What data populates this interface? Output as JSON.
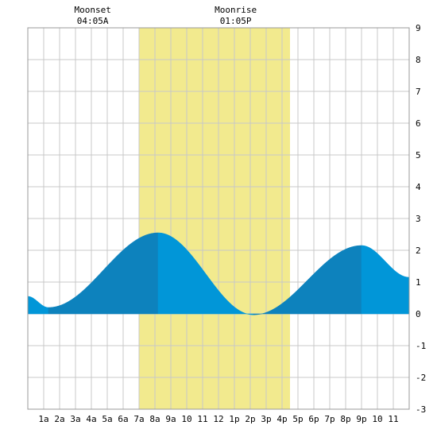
{
  "chart_data": {
    "type": "area",
    "title": "",
    "xlabel": "",
    "ylabel": "",
    "xlim": [
      0,
      24
    ],
    "ylim": [
      -3,
      9
    ],
    "grid": true,
    "x_tick_labels": [
      "1a",
      "2a",
      "3a",
      "4a",
      "5a",
      "6a",
      "7a",
      "8a",
      "9a",
      "10",
      "11",
      "12",
      "1p",
      "2p",
      "3p",
      "4p",
      "5p",
      "6p",
      "7p",
      "8p",
      "9p",
      "10",
      "11"
    ],
    "y_tick_labels": [
      "-3",
      "-2",
      "-1",
      "0",
      "1",
      "2",
      "3",
      "4",
      "5",
      "6",
      "7",
      "8",
      "9"
    ],
    "daylight": {
      "start_hour": 7.0,
      "end_hour": 16.5,
      "color": "#f2ea8e"
    },
    "moon_events": [
      {
        "label": "Moonset",
        "time": "04:05A",
        "hour": 4.083
      },
      {
        "label": "Moonrise",
        "time": "01:05P",
        "hour": 13.083
      }
    ],
    "tide_extremes": [
      {
        "type": "low",
        "hour": 1.3,
        "height": 0.2
      },
      {
        "type": "high",
        "hour": 8.2,
        "height": 2.55
      },
      {
        "type": "low",
        "hour": 14.2,
        "height": -0.03
      },
      {
        "type": "high",
        "hour": 21.0,
        "height": 2.15
      }
    ],
    "start_height": 0.55,
    "end_height": 1.15,
    "colors": {
      "rising": "#0d82bd",
      "falling": "#0196d8",
      "grid": "#c8c8c8",
      "border": "#999999"
    }
  }
}
